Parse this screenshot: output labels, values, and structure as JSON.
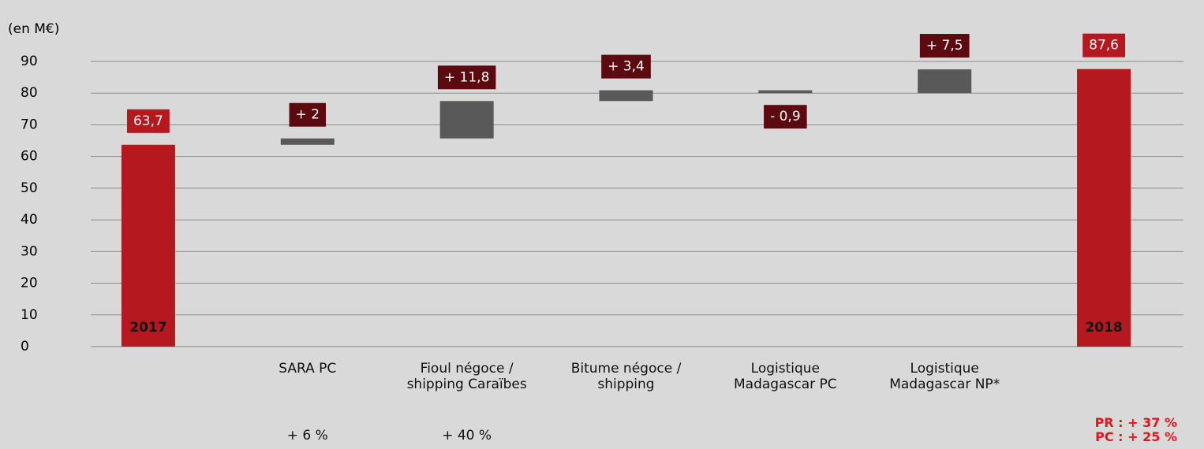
{
  "chart_data": {
    "type": "waterfall",
    "axis_label": "(en M€)",
    "categories": [
      null,
      "SARA PC",
      "Fioul négoce / shipping Caraïbes",
      "Bitume négoce / shipping",
      "Logistique Madagascar PC",
      "Logistique Madagascar NP*",
      null
    ],
    "values": [
      63.7,
      2,
      11.8,
      3.4,
      -0.9,
      7.5,
      87.6
    ],
    "value_labels": [
      "63,7",
      "+ 2",
      "+ 11,8",
      "+ 3,4",
      "- 0,9",
      "+ 7,5",
      "87,6"
    ],
    "measure": [
      "total",
      "relative",
      "relative",
      "relative",
      "relative",
      "relative",
      "total"
    ],
    "bar_labels": [
      "2017",
      null,
      null,
      null,
      null,
      null,
      "2018"
    ],
    "notes": [
      null,
      "+ 6 %",
      "+ 40 %",
      null,
      null,
      null,
      null
    ],
    "total_notes": [
      "PR : + 37 %",
      "PC : + 25 %"
    ],
    "total_color": "#b5191f",
    "delta_color": "#595959",
    "label_box_color": "#5c0a10",
    "ylim": [
      0,
      90
    ],
    "yticks": [
      0,
      10,
      20,
      30,
      40,
      50,
      60,
      70,
      80,
      90
    ],
    "grid": true
  }
}
